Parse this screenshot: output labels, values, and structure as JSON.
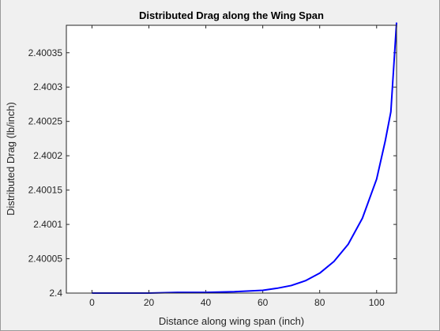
{
  "chart_data": {
    "type": "line",
    "title": "Distributed Drag along the Wing Span",
    "xlabel": "Distance along wing span (inch)",
    "ylabel": "Distributed Drag (lb/inch)",
    "xlim": [
      -9,
      107
    ],
    "ylim": [
      2.4,
      2.40039
    ],
    "xticks": [
      0,
      20,
      40,
      60,
      80,
      100
    ],
    "xtick_labels": [
      "0",
      "20",
      "40",
      "60",
      "80",
      "100"
    ],
    "yticks": [
      2.4,
      2.40005,
      2.4001,
      2.40015,
      2.4002,
      2.40025,
      2.4003,
      2.40035
    ],
    "ytick_labels": [
      "2.4",
      "2.40005",
      "2.4001",
      "2.40015",
      "2.4002",
      "2.40025",
      "2.4003",
      "2.40035"
    ],
    "grid": false,
    "series": [
      {
        "color": "#0000ff",
        "x": [
          0,
          10,
          20,
          30,
          40,
          50,
          55,
          60,
          65,
          70,
          75,
          80,
          85,
          90,
          95,
          100,
          103,
          105,
          107
        ],
        "y": [
          2.4,
          2.4,
          2.4,
          2.400001,
          2.400001,
          2.400002,
          2.400003,
          2.400004,
          2.400007,
          2.400011,
          2.400018,
          2.400029,
          2.400046,
          2.400071,
          2.400109,
          2.400166,
          2.400221,
          2.400264,
          2.400394
        ]
      }
    ]
  }
}
